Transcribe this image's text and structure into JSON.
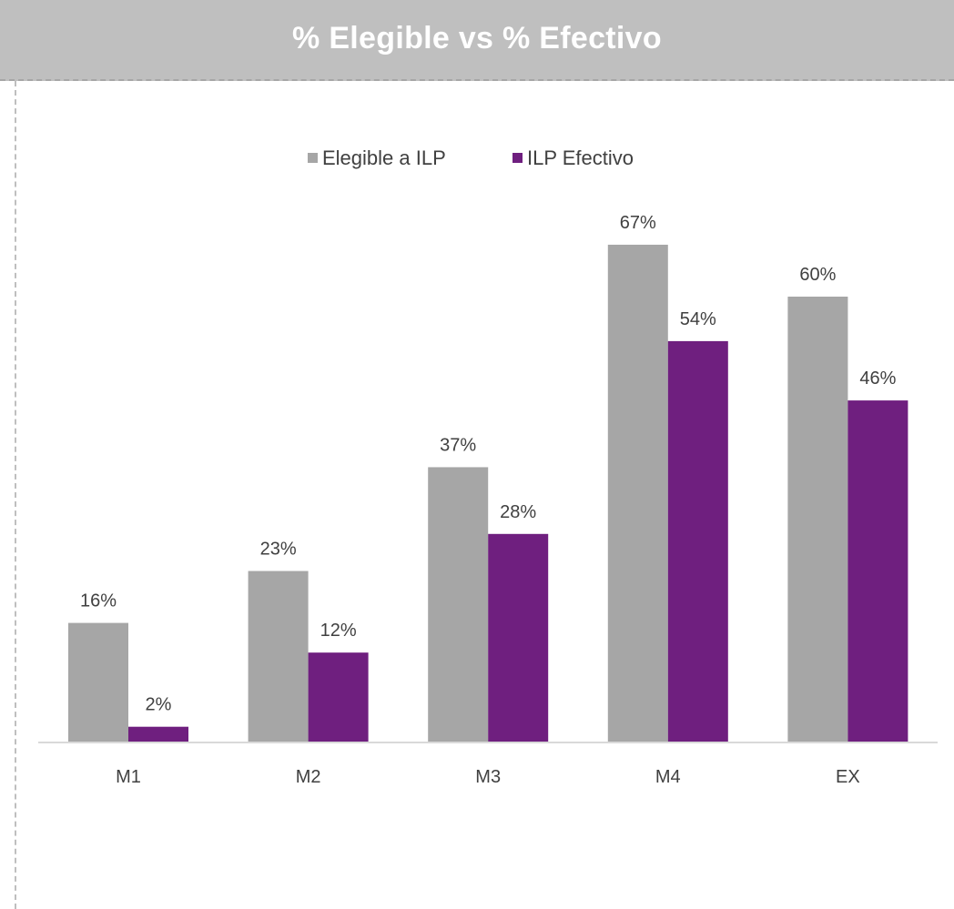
{
  "title": "% Elegible vs % Efectivo",
  "chart_data": {
    "type": "bar",
    "title": "% Elegible vs % Efectivo",
    "xlabel": "",
    "ylabel": "",
    "categories": [
      "M1",
      "M2",
      "M3",
      "M4",
      "EX"
    ],
    "series": [
      {
        "name": "Elegible a ILP",
        "values": [
          16,
          23,
          37,
          67,
          60
        ],
        "labels": [
          "16%",
          "23%",
          "37%",
          "67%",
          "60%"
        ],
        "color": "#a6a6a6"
      },
      {
        "name": "ILP Efectivo",
        "values": [
          2,
          12,
          28,
          54,
          46
        ],
        "labels": [
          "2%",
          "12%",
          "28%",
          "54%",
          "46%"
        ],
        "color": "#6f1f7f"
      }
    ],
    "ylim": [
      0,
      70
    ],
    "grid": false,
    "legend_position": "top"
  },
  "colors": {
    "title_bar": "#bfbfbf",
    "title_text": "#ffffff",
    "axis_line": "#d9d9d9",
    "label_text": "#404040"
  }
}
